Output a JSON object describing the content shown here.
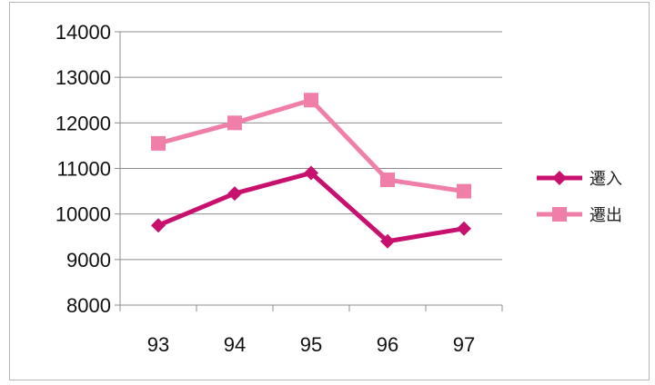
{
  "chart_data": {
    "type": "line",
    "x": [
      "93",
      "94",
      "95",
      "96",
      "97"
    ],
    "ylim": [
      8000,
      14000
    ],
    "yticks": [
      "8000",
      "9000",
      "10000",
      "11000",
      "12000",
      "13000",
      "14000"
    ],
    "grid": true,
    "legend_position": "right",
    "series": [
      {
        "name": "遷入",
        "values": [
          9750,
          10450,
          10900,
          9400,
          9680
        ],
        "color": "#c8106e",
        "marker": "diamond"
      },
      {
        "name": "遷出",
        "values": [
          11550,
          12000,
          12500,
          10750,
          10500
        ],
        "color": "#ef7fa8",
        "marker": "square"
      }
    ]
  }
}
